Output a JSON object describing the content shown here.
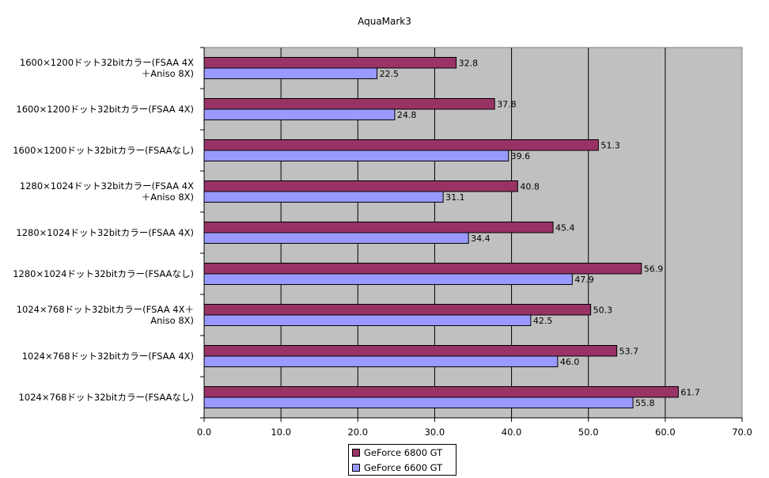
{
  "chart_data": {
    "type": "bar",
    "orientation": "horizontal",
    "title": "AquaMark3",
    "xlabel": "",
    "ylabel": "",
    "xlim": [
      0,
      700
    ],
    "x_ticks": [
      "0.0",
      "10.0",
      "20.0",
      "30.0",
      "40.0",
      "50.0",
      "60.0",
      "70.0"
    ],
    "grid": true,
    "legend_position": "bottom",
    "categories": [
      [
        "1600×1200ドット32bitカラー(FSAA 4X",
        "＋Aniso 8X)"
      ],
      [
        "1600×1200ドット32bitカラー(FSAA 4X)"
      ],
      [
        "1600×1200ドット32bitカラー(FSAAなし)"
      ],
      [
        "1280×1024ドット32bitカラー(FSAA 4X",
        "＋Aniso 8X)"
      ],
      [
        "1280×1024ドット32bitカラー(FSAA 4X)"
      ],
      [
        "1280×1024ドット32bitカラー(FSAAなし)"
      ],
      [
        "1024×768ドット32bitカラー(FSAA 4X＋",
        "Aniso 8X)"
      ],
      [
        "1024×768ドット32bitカラー(FSAA 4X)"
      ],
      [
        "1024×768ドット32bitカラー(FSAAなし)"
      ]
    ],
    "series": [
      {
        "name": "GeForce 6800 GT",
        "color": "#993366",
        "values": [
          328,
          378,
          513,
          408,
          454,
          569,
          503,
          537,
          617
        ],
        "labels": [
          "32.8",
          "37.8",
          "51.3",
          "40.8",
          "45.4",
          "56.9",
          "50.3",
          "53.7",
          "61.7"
        ]
      },
      {
        "name": "GeForce 6600 GT",
        "color": "#9999FF",
        "values": [
          225,
          248,
          396,
          311,
          344,
          479,
          425,
          460,
          558
        ],
        "labels": [
          "22.5",
          "24.8",
          "39.6",
          "31.1",
          "34.4",
          "47.9",
          "42.5",
          "46.0",
          "55.8"
        ]
      }
    ]
  },
  "colors": {
    "plot_background": "#C0C0C0",
    "gridline": "#000000"
  }
}
